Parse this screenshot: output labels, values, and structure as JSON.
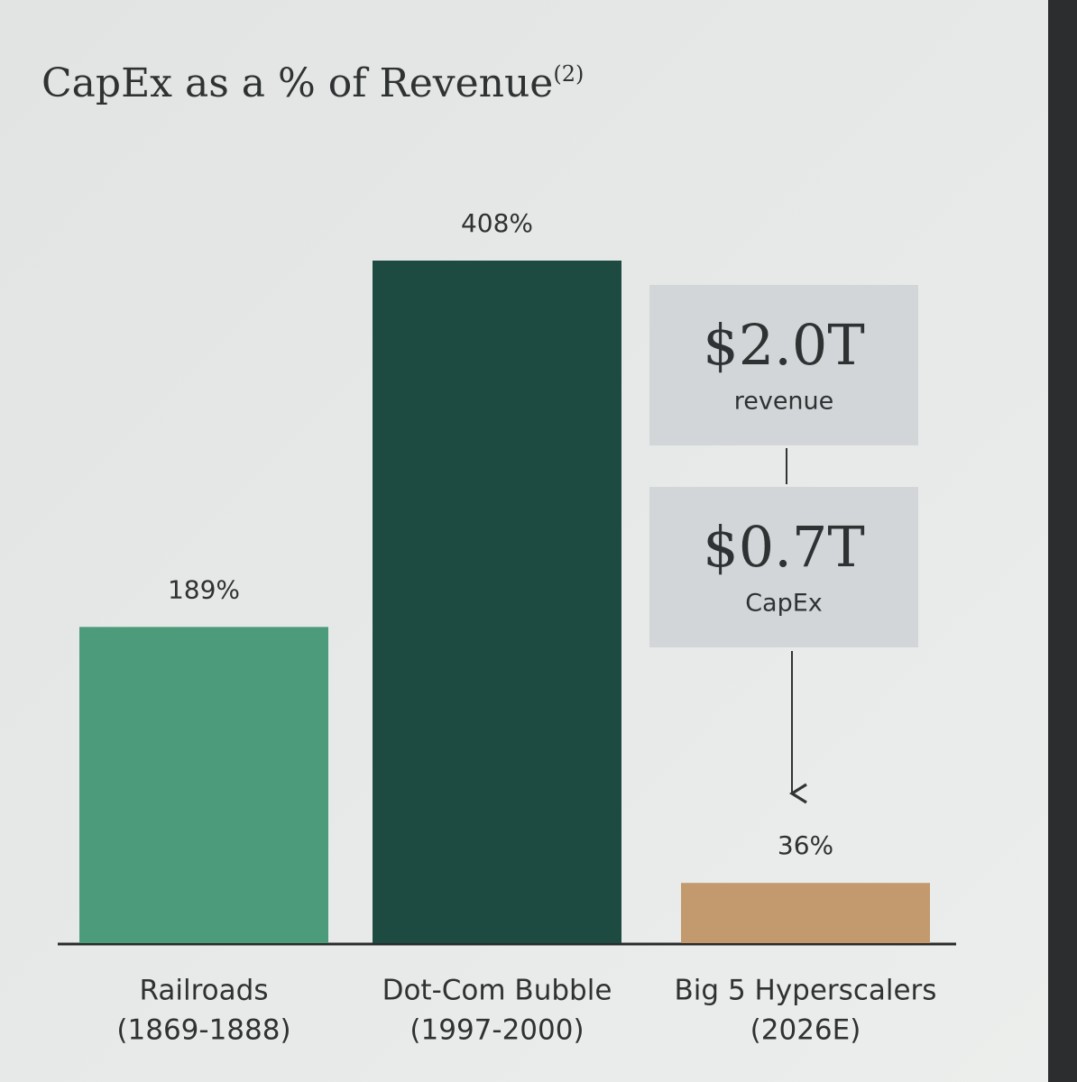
{
  "chart_data": {
    "type": "bar",
    "title": "CapEx as a % of Revenue",
    "title_note": "(2)",
    "categories": [
      [
        "Railroads",
        "(1869-1888)"
      ],
      [
        "Dot-Com Bubble",
        "(1997-2000)"
      ],
      [
        "Big 5 Hyperscalers",
        "(2026E)"
      ]
    ],
    "values": [
      189,
      408,
      36
    ],
    "value_labels": [
      "189%",
      "408%",
      "36%"
    ],
    "colors": [
      "#4c9c7c",
      "#1d4b42",
      "#c29a6d"
    ],
    "annotations": [
      {
        "value": "$2.0T",
        "label": "revenue"
      },
      {
        "value": "$0.7T",
        "label": "CapEx"
      }
    ]
  }
}
